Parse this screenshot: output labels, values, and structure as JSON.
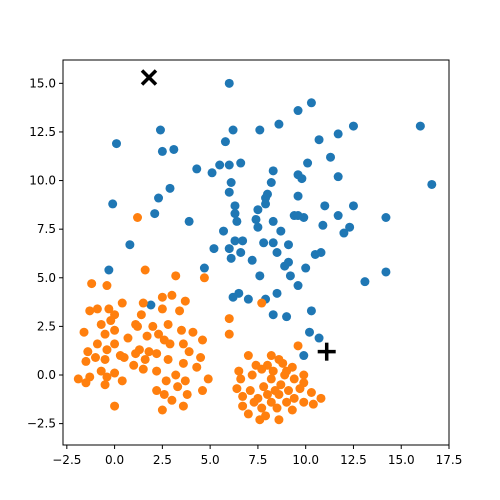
{
  "chart_data": {
    "type": "scatter",
    "title": "",
    "xlabel": "",
    "ylabel": "",
    "xlim": [
      -2.7,
      17.5
    ],
    "ylim": [
      -3.6,
      16.2
    ],
    "x_ticks": [
      -2.5,
      0.0,
      2.5,
      5.0,
      7.5,
      10.0,
      12.5,
      15.0,
      17.5
    ],
    "x_tick_labels": [
      "−2.5",
      "0.0",
      "2.5",
      "5.0",
      "7.5",
      "10.0",
      "12.5",
      "15.0",
      "17.5"
    ],
    "y_ticks": [
      -2.5,
      0.0,
      2.5,
      5.0,
      7.5,
      10.0,
      12.5,
      15.0
    ],
    "y_tick_labels": [
      "−2.5",
      "0.0",
      "2.5",
      "5.0",
      "7.5",
      "10.0",
      "12.5",
      "15.0"
    ],
    "grid": false,
    "series": [
      {
        "color": "#1f77b4",
        "marker": "circle",
        "points": [
          [
            6.0,
            15.0
          ],
          [
            10.3,
            14.0
          ],
          [
            9.6,
            13.6
          ],
          [
            16.0,
            12.8
          ],
          [
            12.5,
            12.8
          ],
          [
            2.4,
            12.6
          ],
          [
            6.2,
            12.6
          ],
          [
            7.6,
            12.6
          ],
          [
            8.6,
            12.9
          ],
          [
            11.7,
            12.4
          ],
          [
            0.1,
            11.9
          ],
          [
            5.8,
            12.0
          ],
          [
            10.7,
            12.1
          ],
          [
            2.5,
            11.5
          ],
          [
            3.1,
            11.6
          ],
          [
            11.3,
            11.2
          ],
          [
            6.6,
            10.9
          ],
          [
            10.1,
            10.9
          ],
          [
            4.3,
            10.6
          ],
          [
            5.1,
            10.4
          ],
          [
            5.5,
            10.8
          ],
          [
            6.0,
            10.8
          ],
          [
            8.3,
            10.5
          ],
          [
            9.6,
            10.3
          ],
          [
            11.7,
            10.2
          ],
          [
            16.6,
            9.8
          ],
          [
            6.1,
            9.9
          ],
          [
            9.8,
            10.1
          ],
          [
            8.2,
            9.9
          ],
          [
            2.9,
            9.6
          ],
          [
            8.0,
            9.3
          ],
          [
            6.0,
            9.4
          ],
          [
            7.9,
            9.1
          ],
          [
            9.6,
            9.2
          ],
          [
            2.3,
            9.1
          ],
          [
            7.9,
            8.8
          ],
          [
            -0.1,
            8.8
          ],
          [
            6.3,
            8.7
          ],
          [
            11.0,
            8.7
          ],
          [
            12.5,
            8.7
          ],
          [
            6.3,
            8.3
          ],
          [
            7.5,
            8.5
          ],
          [
            2.1,
            8.3
          ],
          [
            7.4,
            8.0
          ],
          [
            9.4,
            8.2
          ],
          [
            9.6,
            8.2
          ],
          [
            11.7,
            8.2
          ],
          [
            14.2,
            8.1
          ],
          [
            3.9,
            7.9
          ],
          [
            9.9,
            8.1
          ],
          [
            8.3,
            7.9
          ],
          [
            6.4,
            7.9
          ],
          [
            10.9,
            7.7
          ],
          [
            7.5,
            7.6
          ],
          [
            12.3,
            7.6
          ],
          [
            5.7,
            7.4
          ],
          [
            8.7,
            7.4
          ],
          [
            12.0,
            7.3
          ],
          [
            6.3,
            6.9
          ],
          [
            6.7,
            6.9
          ],
          [
            7.8,
            6.8
          ],
          [
            8.3,
            6.8
          ],
          [
            0.8,
            6.7
          ],
          [
            9.1,
            6.7
          ],
          [
            5.2,
            6.5
          ],
          [
            6.0,
            6.5
          ],
          [
            6.6,
            6.3
          ],
          [
            10.5,
            6.2
          ],
          [
            10.8,
            6.3
          ],
          [
            6.1,
            6.0
          ],
          [
            8.5,
            6.3
          ],
          [
            7.2,
            5.9
          ],
          [
            9.1,
            5.8
          ],
          [
            -0.3,
            5.4
          ],
          [
            4.7,
            5.5
          ],
          [
            8.9,
            5.6
          ],
          [
            10.0,
            5.5
          ],
          [
            14.2,
            5.3
          ],
          [
            7.6,
            5.1
          ],
          [
            9.2,
            5.1
          ],
          [
            13.1,
            4.8
          ],
          [
            9.6,
            4.6
          ],
          [
            6.5,
            4.2
          ],
          [
            8.5,
            4.2
          ],
          [
            6.2,
            4.0
          ],
          [
            7.0,
            3.9
          ],
          [
            7.9,
            3.9
          ],
          [
            1.9,
            3.6
          ],
          [
            10.3,
            3.3
          ],
          [
            8.3,
            3.1
          ],
          [
            9.0,
            3.0
          ],
          [
            10.2,
            2.2
          ],
          [
            10.7,
            1.9
          ],
          [
            9.9,
            1.0
          ]
        ]
      },
      {
        "color": "#ff7f0e",
        "marker": "circle",
        "points": [
          [
            1.2,
            8.1
          ],
          [
            1.6,
            5.4
          ],
          [
            3.2,
            5.1
          ],
          [
            4.7,
            5.0
          ],
          [
            -1.2,
            4.7
          ],
          [
            -0.4,
            4.6
          ],
          [
            3.0,
            4.1
          ],
          [
            2.5,
            4.0
          ],
          [
            3.7,
            3.8
          ],
          [
            0.4,
            3.7
          ],
          [
            1.5,
            3.7
          ],
          [
            -0.9,
            3.4
          ],
          [
            -0.3,
            3.4
          ],
          [
            2.5,
            3.4
          ],
          [
            3.4,
            3.3
          ],
          [
            -1.3,
            3.3
          ],
          [
            1.4,
            3.1
          ],
          [
            0.0,
            3.1
          ],
          [
            -0.2,
            2.8
          ],
          [
            7.7,
            3.7
          ],
          [
            6.0,
            2.9
          ],
          [
            -0.7,
            2.6
          ],
          [
            1.1,
            2.6
          ],
          [
            2.0,
            2.5
          ],
          [
            2.8,
            2.6
          ],
          [
            1.2,
            2.5
          ],
          [
            0.0,
            2.3
          ],
          [
            3.5,
            2.3
          ],
          [
            -1.6,
            2.2
          ],
          [
            4.1,
            2.2
          ],
          [
            -0.5,
            2.1
          ],
          [
            2.3,
            2.1
          ],
          [
            1.7,
            2.0
          ],
          [
            6.0,
            2.1
          ],
          [
            0.7,
            1.9
          ],
          [
            2.6,
            1.8
          ],
          [
            4.6,
            1.8
          ],
          [
            -0.9,
            1.6
          ],
          [
            0.0,
            1.6
          ],
          [
            2.9,
            1.6
          ],
          [
            3.6,
            1.6
          ],
          [
            1.3,
            1.3
          ],
          [
            1.8,
            1.2
          ],
          [
            -1.4,
            1.2
          ],
          [
            -0.4,
            1.3
          ],
          [
            1.1,
            1.1
          ],
          [
            2.2,
            1.1
          ],
          [
            0.3,
            1.0
          ],
          [
            3.9,
            1.2
          ],
          [
            4.5,
            0.9
          ],
          [
            -1.0,
            0.9
          ],
          [
            0.5,
            0.9
          ],
          [
            -0.5,
            0.8
          ],
          [
            1.6,
            0.8
          ],
          [
            2.8,
            0.8
          ],
          [
            -1.5,
            0.7
          ],
          [
            3.6,
            0.6
          ],
          [
            1.0,
            0.5
          ],
          [
            9.6,
            1.5
          ],
          [
            7.0,
            1.0
          ],
          [
            8.2,
            1.0
          ],
          [
            8.6,
            0.8
          ],
          [
            4.3,
            0.4
          ],
          [
            1.5,
            0.3
          ],
          [
            7.4,
            0.5
          ],
          [
            8.0,
            0.5
          ],
          [
            8.8,
            0.6
          ],
          [
            9.3,
            0.4
          ],
          [
            2.2,
            0.2
          ],
          [
            0.0,
            0.1
          ],
          [
            -0.7,
            0.2
          ],
          [
            6.5,
            0.2
          ],
          [
            7.7,
            0.3
          ],
          [
            8.3,
            0.2
          ],
          [
            9.0,
            0.2
          ],
          [
            3.2,
            0.0
          ],
          [
            -1.3,
            -0.1
          ],
          [
            -0.4,
            -0.1
          ],
          [
            -1.9,
            -0.2
          ],
          [
            4.9,
            -0.2
          ],
          [
            7.2,
            0.0
          ],
          [
            8.9,
            0.0
          ],
          [
            9.9,
            0.0
          ],
          [
            0.4,
            -0.3
          ],
          [
            2.7,
            -0.3
          ],
          [
            3.7,
            -0.3
          ],
          [
            6.6,
            -0.2
          ],
          [
            8.2,
            -0.2
          ],
          [
            9.4,
            -0.2
          ],
          [
            -1.5,
            -0.4
          ],
          [
            -0.5,
            -0.5
          ],
          [
            3.3,
            -0.6
          ],
          [
            7.8,
            -0.6
          ],
          [
            8.7,
            -0.5
          ],
          [
            9.9,
            -0.4
          ],
          [
            6.4,
            -0.7
          ],
          [
            8.4,
            -0.8
          ],
          [
            2.2,
            -0.8
          ],
          [
            4.6,
            -0.8
          ],
          [
            7.1,
            -0.8
          ],
          [
            9.1,
            -0.8
          ],
          [
            9.7,
            -0.7
          ],
          [
            2.6,
            -1.0
          ],
          [
            3.8,
            -1.0
          ],
          [
            8.0,
            -1.0
          ],
          [
            8.6,
            -1.0
          ],
          [
            10.3,
            -0.9
          ],
          [
            6.7,
            -1.1
          ],
          [
            7.5,
            -1.2
          ],
          [
            3.0,
            -1.3
          ],
          [
            9.4,
            -1.2
          ],
          [
            10.8,
            -1.2
          ],
          [
            7.3,
            -1.4
          ],
          [
            8.2,
            -1.4
          ],
          [
            9.0,
            -1.4
          ],
          [
            9.9,
            -1.4
          ],
          [
            10.4,
            -1.5
          ],
          [
            0.0,
            -1.6
          ],
          [
            2.5,
            -1.8
          ],
          [
            3.6,
            -1.6
          ],
          [
            6.7,
            -1.6
          ],
          [
            7.7,
            -1.7
          ],
          [
            8.5,
            -1.7
          ],
          [
            9.3,
            -1.8
          ],
          [
            7.0,
            -2.0
          ],
          [
            7.9,
            -2.1
          ],
          [
            8.6,
            -2.3
          ],
          [
            7.6,
            -2.3
          ]
        ]
      }
    ],
    "markers": [
      {
        "type": "x",
        "point": [
          1.8,
          15.3
        ],
        "color": "#000000"
      },
      {
        "type": "plus",
        "point": [
          11.1,
          1.2
        ],
        "color": "#000000"
      }
    ]
  }
}
